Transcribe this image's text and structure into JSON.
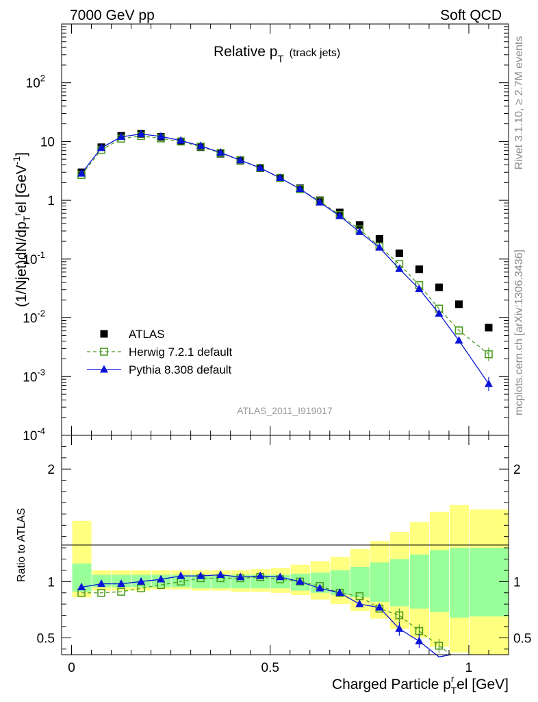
{
  "header": {
    "left": "7000 GeV pp",
    "right": "Soft QCD"
  },
  "side": {
    "top": "Rivet 3.1.10, ≥ 2.7M events",
    "bottom": "mcplots.cern.ch [arXiv:1306.3436]"
  },
  "chart_data": {
    "type": "scatter",
    "title_main": "Relative p",
    "title_sub": "T",
    "title_extra": "(track jets)",
    "watermark": "ATLAS_2011_I919017",
    "xlabel_main": "Charged Particle p",
    "xlabel_sub": "T",
    "xlabel_suffix": "el [GeV]",
    "ylabel": "(1/Njet)dN/dp",
    "ylabel_suffix": "el [GeV",
    "ratio_ylabel": "Ratio to ATLAS",
    "xlim": [
      -0.025,
      1.1
    ],
    "ylim": [
      0.0001,
      1000
    ],
    "ratio_ylim": [
      0.35,
      2.3
    ],
    "x_ticks": [
      {
        "v": 0,
        "label": "0"
      },
      {
        "v": 0.5,
        "label": "0.5"
      },
      {
        "v": 1,
        "label": "1"
      }
    ],
    "y_ticks": [
      {
        "base": "10",
        "exp": "-4"
      },
      {
        "base": "10",
        "exp": "-3"
      },
      {
        "base": "10",
        "exp": "-2"
      },
      {
        "base": "10",
        "exp": "-1"
      },
      {
        "base": "1",
        "exp": ""
      },
      {
        "base": "10",
        "exp": ""
      },
      {
        "base": "10",
        "exp": "2"
      }
    ],
    "ratio_ticks": [
      {
        "v": 0.5,
        "label": "0.5"
      },
      {
        "v": 1,
        "label": "1"
      },
      {
        "v": 2,
        "label": "2"
      }
    ],
    "bins": [
      [
        0,
        0.05
      ],
      [
        0.05,
        0.1
      ],
      [
        0.1,
        0.15
      ],
      [
        0.15,
        0.2
      ],
      [
        0.2,
        0.25
      ],
      [
        0.25,
        0.3
      ],
      [
        0.3,
        0.35
      ],
      [
        0.35,
        0.4
      ],
      [
        0.4,
        0.45
      ],
      [
        0.45,
        0.5
      ],
      [
        0.5,
        0.55
      ],
      [
        0.55,
        0.6
      ],
      [
        0.6,
        0.65
      ],
      [
        0.65,
        0.7
      ],
      [
        0.7,
        0.75
      ],
      [
        0.75,
        0.8
      ],
      [
        0.8,
        0.85
      ],
      [
        0.85,
        0.9
      ],
      [
        0.9,
        0.95
      ],
      [
        0.95,
        1.0
      ],
      [
        1.0,
        1.1
      ]
    ],
    "x": [
      0.025,
      0.075,
      0.125,
      0.175,
      0.225,
      0.275,
      0.325,
      0.375,
      0.425,
      0.475,
      0.525,
      0.575,
      0.625,
      0.675,
      0.725,
      0.775,
      0.825,
      0.875,
      0.925,
      0.975,
      1.05
    ],
    "band_inner": [
      [
        0.91,
        1.16
      ],
      [
        0.95,
        1.06
      ],
      [
        0.95,
        1.06
      ],
      [
        0.95,
        1.06
      ],
      [
        0.95,
        1.06
      ],
      [
        0.95,
        1.06
      ],
      [
        0.94,
        1.06
      ],
      [
        0.94,
        1.06
      ],
      [
        0.94,
        1.06
      ],
      [
        0.94,
        1.06
      ],
      [
        0.94,
        1.06
      ],
      [
        0.92,
        1.07
      ],
      [
        0.9,
        1.08
      ],
      [
        0.88,
        1.1
      ],
      [
        0.86,
        1.13
      ],
      [
        0.82,
        1.17
      ],
      [
        0.78,
        1.2
      ],
      [
        0.76,
        1.24
      ],
      [
        0.73,
        1.28
      ],
      [
        0.68,
        1.3
      ],
      [
        0.69,
        1.3
      ]
    ],
    "band_outer": [
      [
        0.86,
        1.54
      ],
      [
        0.92,
        1.1
      ],
      [
        0.92,
        1.1
      ],
      [
        0.92,
        1.1
      ],
      [
        0.93,
        1.1
      ],
      [
        0.93,
        1.1
      ],
      [
        0.92,
        1.1
      ],
      [
        0.92,
        1.1
      ],
      [
        0.91,
        1.1
      ],
      [
        0.91,
        1.11
      ],
      [
        0.9,
        1.12
      ],
      [
        0.88,
        1.15
      ],
      [
        0.84,
        1.18
      ],
      [
        0.8,
        1.22
      ],
      [
        0.74,
        1.29
      ],
      [
        0.67,
        1.36
      ],
      [
        0.58,
        1.44
      ],
      [
        0.5,
        1.53
      ],
      [
        0.42,
        1.62
      ],
      [
        0.37,
        1.68
      ],
      [
        0.35,
        1.64
      ]
    ],
    "series": [
      {
        "name": "ATLAS",
        "marker": "square",
        "color": "#000000",
        "values": [
          3.0,
          8.0,
          12.5,
          13.5,
          12.0,
          10.0,
          8.0,
          6.2,
          4.7,
          3.5,
          2.4,
          1.6,
          1.0,
          0.62,
          0.38,
          0.22,
          0.125,
          0.067,
          0.033,
          0.017,
          0.0068
        ],
        "ratio": [
          1,
          1,
          1,
          1,
          1,
          1,
          1,
          1,
          1,
          1,
          1,
          1,
          1,
          1,
          1,
          1,
          1,
          1,
          1,
          1,
          1
        ]
      },
      {
        "name": "Herwig 7.2.1 default",
        "marker": "open-square",
        "color": "#4b9b1f",
        "values": [
          2.7,
          7.2,
          11.2,
          12.4,
          11.3,
          10.0,
          8.2,
          6.4,
          4.8,
          3.55,
          2.4,
          1.55,
          0.96,
          0.56,
          0.32,
          0.164,
          0.082,
          0.036,
          0.0143,
          0.0061,
          0.0024
        ],
        "ratio": [
          0.9,
          0.9,
          0.91,
          0.94,
          0.97,
          1.0,
          1.03,
          1.03,
          1.03,
          1.04,
          1.02,
          1.0,
          0.96,
          0.9,
          0.87,
          0.76,
          0.7,
          0.56,
          0.43,
          null,
          null
        ]
      },
      {
        "name": "Pythia 8.308 default",
        "marker": "triangle",
        "color": "#0a14d8",
        "values": [
          2.85,
          7.8,
          12.0,
          13.4,
          12.2,
          10.4,
          8.4,
          6.5,
          4.8,
          3.55,
          2.4,
          1.56,
          0.92,
          0.54,
          0.29,
          0.157,
          0.068,
          0.031,
          0.0118,
          0.0041,
          0.00075
        ],
        "ratio": [
          0.95,
          0.98,
          0.98,
          1.0,
          1.02,
          1.05,
          1.05,
          1.06,
          1.04,
          1.05,
          1.04,
          1.0,
          0.94,
          0.9,
          0.8,
          0.77,
          0.58,
          0.47,
          0.33,
          null,
          null
        ]
      }
    ]
  }
}
